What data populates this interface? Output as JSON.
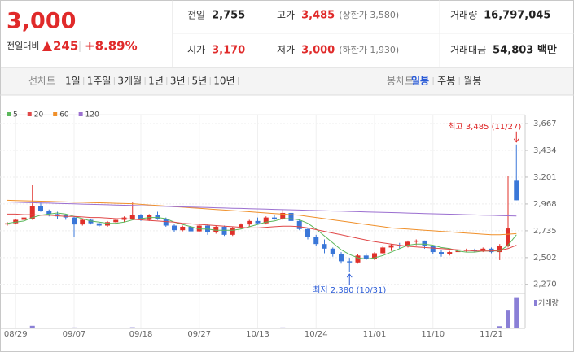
{
  "header": {
    "price": "3,000",
    "change_label": "전일대비",
    "change": "245",
    "change_pct": "+8.89%",
    "stats": [
      {
        "label": "전일",
        "value": "2,755"
      },
      {
        "label": "고가",
        "value": "3,485",
        "note": "(상한가 3,580)"
      },
      {
        "label": "거래량",
        "value": "16,797,045"
      },
      {
        "label": "시가",
        "value": "3,170"
      },
      {
        "label": "저가",
        "value": "3,000",
        "note": "(하한가 1,930)"
      },
      {
        "label": "거래대금",
        "value": "54,803 백만"
      }
    ]
  },
  "tabs": {
    "line_label": "선차트",
    "line_periods": [
      "1일",
      "1주일",
      "3개월",
      "1년",
      "3년",
      "5년",
      "10년"
    ],
    "candle_label": "봉차트",
    "candle_periods": [
      "일봉",
      "주봉",
      "월봉"
    ],
    "selected": "일봉"
  },
  "chart_data": {
    "type": "candlestick",
    "categories": [
      null,
      "08/29",
      null,
      null,
      null,
      null,
      null,
      null,
      "09/07",
      null,
      null,
      null,
      null,
      null,
      null,
      null,
      "09/18",
      null,
      null,
      null,
      null,
      null,
      null,
      "09/27",
      null,
      null,
      null,
      null,
      null,
      null,
      "10/13",
      null,
      null,
      null,
      null,
      null,
      null,
      "10/24",
      null,
      null,
      null,
      null,
      null,
      null,
      "11/01",
      null,
      null,
      null,
      null,
      null,
      null,
      "11/10",
      null,
      null,
      null,
      null,
      null,
      null,
      "11/21",
      null,
      null,
      null
    ],
    "open": [
      2790,
      2800,
      2830,
      2840,
      2950,
      2910,
      2880,
      2870,
      2850,
      2790,
      2830,
      2800,
      2780,
      2810,
      2830,
      2840,
      2870,
      2830,
      2870,
      2840,
      2780,
      2740,
      2770,
      2730,
      2780,
      2720,
      2770,
      2700,
      2760,
      2790,
      2820,
      2800,
      2850,
      2840,
      2890,
      2820,
      2750,
      2680,
      2620,
      2580,
      2530,
      2470,
      2460,
      2520,
      2490,
      2540,
      2590,
      2610,
      2600,
      2640,
      2650,
      2600,
      2550,
      2530,
      2550,
      2560,
      2570,
      2560,
      2580,
      2550,
      2600,
      3170
    ],
    "high": [
      2810,
      2840,
      2860,
      3130,
      2980,
      2920,
      2900,
      2880,
      2860,
      2840,
      2840,
      2810,
      2820,
      2840,
      2860,
      2980,
      2880,
      2880,
      2900,
      2850,
      2790,
      2780,
      2780,
      2790,
      2790,
      2780,
      2780,
      2770,
      2800,
      2830,
      2850,
      2860,
      2870,
      2920,
      2890,
      2830,
      2760,
      2700,
      2660,
      2590,
      2550,
      2500,
      2530,
      2540,
      2550,
      2600,
      2620,
      2630,
      2650,
      2660,
      2650,
      2610,
      2570,
      2560,
      2570,
      2580,
      2580,
      2590,
      2590,
      2620,
      3210,
      3485
    ],
    "low": [
      2780,
      2790,
      2810,
      2830,
      2900,
      2860,
      2840,
      2830,
      2680,
      2780,
      2790,
      2770,
      2770,
      2790,
      2810,
      2830,
      2820,
      2820,
      2830,
      2770,
      2720,
      2730,
      2720,
      2720,
      2700,
      2710,
      2690,
      2690,
      2750,
      2770,
      2790,
      2790,
      2830,
      2830,
      2810,
      2740,
      2660,
      2600,
      2540,
      2510,
      2450,
      2380,
      2450,
      2480,
      2480,
      2530,
      2560,
      2580,
      2590,
      2610,
      2580,
      2530,
      2510,
      2520,
      2540,
      2550,
      2550,
      2550,
      2540,
      2480,
      2590,
      3000
    ],
    "close": [
      2800,
      2830,
      2850,
      2950,
      2910,
      2880,
      2860,
      2850,
      2790,
      2830,
      2800,
      2780,
      2810,
      2830,
      2850,
      2870,
      2830,
      2870,
      2840,
      2780,
      2740,
      2770,
      2730,
      2780,
      2720,
      2770,
      2700,
      2760,
      2790,
      2820,
      2800,
      2850,
      2840,
      2890,
      2820,
      2750,
      2680,
      2620,
      2580,
      2530,
      2470,
      2460,
      2520,
      2490,
      2540,
      2590,
      2610,
      2600,
      2640,
      2650,
      2600,
      2550,
      2530,
      2550,
      2560,
      2570,
      2560,
      2580,
      2550,
      2600,
      2755,
      3000
    ],
    "up_color": "#e0302a",
    "down_color": "#3a77d8",
    "series": [
      {
        "name": "5",
        "color": "#5cb85c",
        "values": [
          2800,
          2810,
          2820,
          2850,
          2870,
          2880,
          2890,
          2880,
          2860,
          2840,
          2820,
          2810,
          2800,
          2800,
          2810,
          2830,
          2840,
          2850,
          2850,
          2840,
          2810,
          2790,
          2770,
          2750,
          2750,
          2740,
          2740,
          2740,
          2750,
          2770,
          2790,
          2810,
          2820,
          2840,
          2840,
          2830,
          2800,
          2750,
          2690,
          2630,
          2570,
          2530,
          2500,
          2490,
          2500,
          2520,
          2550,
          2580,
          2610,
          2620,
          2620,
          2610,
          2590,
          2580,
          2560,
          2550,
          2550,
          2560,
          2560,
          2560,
          2610,
          2700
        ]
      },
      {
        "name": "20",
        "color": "#e04848",
        "values": [
          2880,
          2880,
          2875,
          2875,
          2870,
          2870,
          2865,
          2860,
          2860,
          2855,
          2850,
          2850,
          2845,
          2840,
          2840,
          2835,
          2830,
          2825,
          2820,
          2815,
          2810,
          2800,
          2795,
          2790,
          2785,
          2780,
          2775,
          2770,
          2765,
          2760,
          2760,
          2765,
          2770,
          2775,
          2775,
          2770,
          2760,
          2745,
          2730,
          2715,
          2700,
          2685,
          2670,
          2655,
          2640,
          2630,
          2620,
          2610,
          2600,
          2595,
          2590,
          2585,
          2580,
          2575,
          2570,
          2565,
          2560,
          2560,
          2560,
          2565,
          2580,
          2610
        ]
      },
      {
        "name": "60",
        "color": "#f0902a",
        "values": [
          3000,
          2998,
          2996,
          2994,
          2992,
          2990,
          2988,
          2986,
          2984,
          2982,
          2980,
          2978,
          2976,
          2974,
          2972,
          2970,
          2965,
          2960,
          2955,
          2950,
          2945,
          2940,
          2935,
          2930,
          2925,
          2920,
          2915,
          2910,
          2905,
          2900,
          2895,
          2890,
          2885,
          2880,
          2875,
          2870,
          2860,
          2850,
          2840,
          2830,
          2820,
          2810,
          2800,
          2790,
          2780,
          2770,
          2760,
          2755,
          2750,
          2745,
          2740,
          2735,
          2730,
          2725,
          2720,
          2715,
          2710,
          2705,
          2700,
          2700,
          2705,
          2710
        ]
      },
      {
        "name": "120",
        "color": "#9b6fd0",
        "values": [
          2985,
          2983,
          2981,
          2979,
          2977,
          2975,
          2973,
          2971,
          2969,
          2967,
          2965,
          2963,
          2961,
          2959,
          2957,
          2955,
          2953,
          2951,
          2949,
          2947,
          2945,
          2943,
          2941,
          2939,
          2937,
          2935,
          2933,
          2931,
          2929,
          2927,
          2925,
          2923,
          2921,
          2919,
          2917,
          2915,
          2913,
          2911,
          2909,
          2907,
          2905,
          2903,
          2901,
          2899,
          2897,
          2895,
          2893,
          2891,
          2889,
          2887,
          2885,
          2883,
          2881,
          2879,
          2877,
          2875,
          2873,
          2871,
          2869,
          2867,
          2865,
          2863
        ]
      }
    ],
    "ylim": [
      2190,
      3745
    ],
    "yticks": [
      {
        "value": 2270,
        "label": "2,270"
      },
      {
        "value": 2502,
        "label": "2,502"
      },
      {
        "value": 2735,
        "label": "2,735"
      },
      {
        "value": 2968,
        "label": "2,968"
      },
      {
        "value": 3201,
        "label": "3,201"
      },
      {
        "value": 3434,
        "label": "3,434"
      },
      {
        "value": 3667,
        "label": "3,667"
      }
    ],
    "grid": true,
    "high_label": "최고 3,485 (11/27)",
    "low_label": "최저 2,380 (10/31)",
    "volume_label": "거래량",
    "volume_color": "#8a7fd6",
    "volume_ylim": [
      0,
      17500000
    ],
    "volume": [
      300000,
      300000,
      300000,
      1400000,
      400000,
      300000,
      300000,
      300000,
      500000,
      300000,
      300000,
      300000,
      300000,
      300000,
      300000,
      600000,
      300000,
      300000,
      300000,
      300000,
      300000,
      300000,
      300000,
      300000,
      300000,
      300000,
      300000,
      300000,
      300000,
      300000,
      300000,
      300000,
      300000,
      500000,
      300000,
      300000,
      300000,
      300000,
      300000,
      300000,
      300000,
      400000,
      300000,
      300000,
      300000,
      300000,
      300000,
      300000,
      300000,
      300000,
      300000,
      300000,
      300000,
      300000,
      300000,
      300000,
      300000,
      300000,
      300000,
      1200000,
      10000000,
      16797045
    ]
  }
}
